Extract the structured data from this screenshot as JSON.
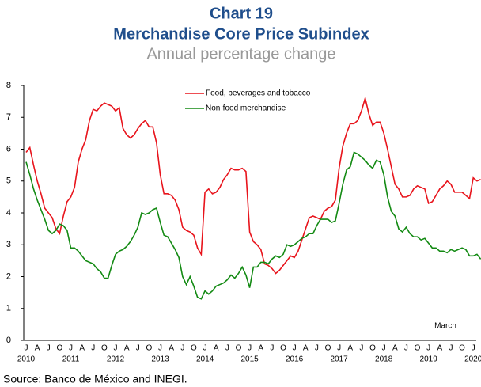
{
  "chart_data": {
    "type": "line",
    "title": "Chart 19",
    "subtitle": "Merchandise Core Price Subindex",
    "caption": "Annual percentage change",
    "source": "Source: Banco de México and INEGI.",
    "annotation": "March",
    "categories": [
      "J",
      null,
      null,
      "A",
      null,
      null,
      "J",
      null,
      null,
      "O",
      null,
      null,
      "J",
      null,
      null,
      "A",
      null,
      null,
      "J",
      null,
      null,
      "O",
      null,
      null,
      "J",
      null,
      null,
      "A",
      null,
      null,
      "J",
      null,
      null,
      "O",
      null,
      null,
      "J",
      null,
      null,
      "A",
      null,
      null,
      "J",
      null,
      null,
      "O",
      null,
      null,
      "J",
      null,
      null,
      "A",
      null,
      null,
      "J",
      null,
      null,
      "O",
      null,
      null,
      "J",
      null,
      null,
      "A",
      null,
      null,
      "J",
      null,
      null,
      "O",
      null,
      null,
      "J",
      null,
      null,
      "A",
      null,
      null,
      "J",
      null,
      null,
      "O",
      null,
      null,
      "J",
      null,
      null,
      "A",
      null,
      null,
      "J",
      null,
      null,
      "O",
      null,
      null,
      "J",
      null,
      null,
      "A",
      null,
      null,
      "J",
      null,
      null,
      "O",
      null,
      null,
      "J",
      null,
      null,
      "A",
      null,
      null,
      "J",
      null,
      null,
      "O",
      null,
      null,
      "J",
      null,
      null
    ],
    "years": [
      "2010",
      "2011",
      "2012",
      "2013",
      "2014",
      "2015",
      "2016",
      "2017",
      "2018",
      "2019",
      "2020"
    ],
    "ylim": [
      0,
      8
    ],
    "yticks": [
      0,
      1,
      2,
      3,
      4,
      5,
      6,
      7,
      8
    ],
    "legend": "top-center",
    "series": [
      {
        "name": "Food, beverages and tobacco",
        "color": "#e8141c",
        "values": [
          5.9,
          6.05,
          5.5,
          5.0,
          4.6,
          4.15,
          4.0,
          3.85,
          3.5,
          3.35,
          3.9,
          4.35,
          4.5,
          4.8,
          5.6,
          6.0,
          6.3,
          6.9,
          7.25,
          7.2,
          7.35,
          7.45,
          7.4,
          7.35,
          7.2,
          7.3,
          6.65,
          6.45,
          6.35,
          6.45,
          6.65,
          6.8,
          6.9,
          6.7,
          6.7,
          6.2,
          5.2,
          4.6,
          4.6,
          4.55,
          4.4,
          4.1,
          3.55,
          3.45,
          3.4,
          3.3,
          2.9,
          2.7,
          4.65,
          4.75,
          4.6,
          4.65,
          4.8,
          5.05,
          5.2,
          5.4,
          5.35,
          5.35,
          5.4,
          5.3,
          3.4,
          3.1,
          3.0,
          2.85,
          2.4,
          2.35,
          2.25,
          2.1,
          2.2,
          2.35,
          2.5,
          2.65,
          2.6,
          2.8,
          3.15,
          3.5,
          3.85,
          3.9,
          3.85,
          3.8,
          4.05,
          4.15,
          4.2,
          4.4,
          5.4,
          6.1,
          6.5,
          6.8,
          6.8,
          6.9,
          7.2,
          7.6,
          7.1,
          6.75,
          6.85,
          6.85,
          6.5,
          6.0,
          5.45,
          4.9,
          4.75,
          4.5,
          4.5,
          4.55,
          4.75,
          4.85,
          4.8,
          4.75,
          4.3,
          4.35,
          4.55,
          4.75,
          4.85,
          5.0,
          4.9,
          4.65,
          4.65,
          4.65,
          4.55,
          4.45,
          5.1,
          5.0,
          5.05
        ]
      },
      {
        "name": "Non-food merchandise",
        "color": "#138a13",
        "values": [
          5.6,
          5.2,
          4.75,
          4.4,
          4.1,
          3.8,
          3.45,
          3.35,
          3.45,
          3.65,
          3.6,
          3.45,
          2.9,
          2.9,
          2.8,
          2.65,
          2.5,
          2.45,
          2.4,
          2.25,
          2.15,
          1.95,
          1.95,
          2.35,
          2.7,
          2.8,
          2.85,
          2.95,
          3.1,
          3.3,
          3.55,
          4.0,
          3.95,
          4.0,
          4.1,
          4.15,
          3.7,
          3.3,
          3.25,
          3.05,
          2.85,
          2.6,
          2.0,
          1.75,
          2.0,
          1.7,
          1.35,
          1.3,
          1.55,
          1.45,
          1.55,
          1.7,
          1.75,
          1.8,
          1.9,
          2.05,
          1.95,
          2.1,
          2.3,
          2.05,
          1.65,
          2.3,
          2.3,
          2.45,
          2.45,
          2.4,
          2.55,
          2.65,
          2.6,
          2.7,
          3.0,
          2.95,
          3.0,
          3.1,
          3.2,
          3.25,
          3.35,
          3.35,
          3.6,
          3.8,
          3.8,
          3.8,
          3.7,
          3.75,
          4.3,
          4.9,
          5.35,
          5.45,
          5.9,
          5.85,
          5.75,
          5.65,
          5.5,
          5.4,
          5.65,
          5.6,
          5.2,
          4.5,
          4.05,
          3.9,
          3.5,
          3.4,
          3.55,
          3.35,
          3.25,
          3.25,
          3.15,
          3.2,
          3.05,
          2.9,
          2.9,
          2.8,
          2.8,
          2.75,
          2.85,
          2.8,
          2.85,
          2.9,
          2.85,
          2.65,
          2.65,
          2.7,
          2.55
        ]
      }
    ]
  }
}
